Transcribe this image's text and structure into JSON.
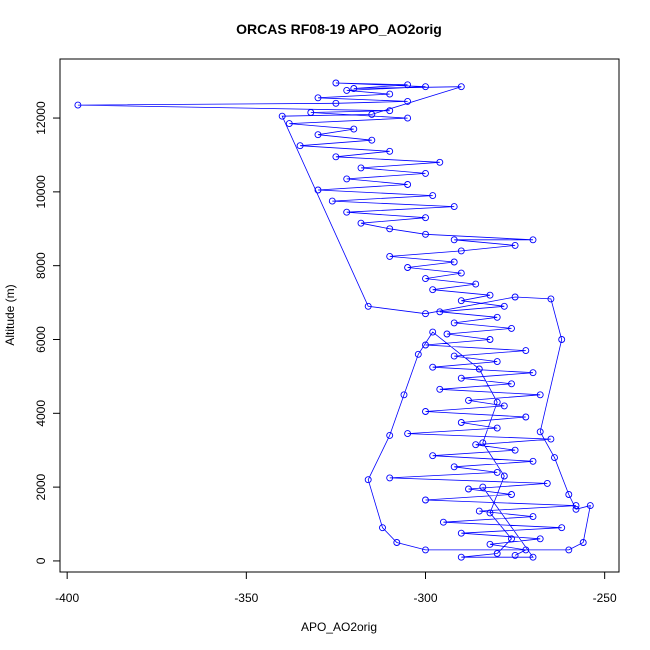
{
  "chart_data": {
    "type": "scatter",
    "title": "ORCAS RF08-19 APO_AO2orig",
    "xlabel": "APO_AO2orig",
    "ylabel": "Altitude (m)",
    "xlim": [
      -402,
      -246
    ],
    "ylim": [
      -300,
      13600
    ],
    "x_ticks": [
      -400,
      -350,
      -300,
      -250
    ],
    "y_ticks": [
      0,
      2000,
      4000,
      6000,
      8000,
      10000,
      12000
    ],
    "marker": "open-circle",
    "connected": true,
    "colors": {
      "series": "#0000ff",
      "axis": "#000000",
      "background": "#ffffff"
    },
    "grid": false,
    "legend": "none",
    "series": [
      {
        "values": [
          [
            -275,
            150
          ],
          [
            -272,
            300
          ],
          [
            -282,
            450
          ],
          [
            -268,
            600
          ],
          [
            -290,
            750
          ],
          [
            -262,
            900
          ],
          [
            -295,
            1050
          ],
          [
            -270,
            1200
          ],
          [
            -285,
            1350
          ],
          [
            -258,
            1500
          ],
          [
            -300,
            1650
          ],
          [
            -276,
            1800
          ],
          [
            -288,
            1950
          ],
          [
            -266,
            2100
          ],
          [
            -310,
            2250
          ],
          [
            -280,
            2400
          ],
          [
            -292,
            2550
          ],
          [
            -270,
            2700
          ],
          [
            -298,
            2850
          ],
          [
            -275,
            3000
          ],
          [
            -286,
            3150
          ],
          [
            -265,
            3300
          ],
          [
            -305,
            3450
          ],
          [
            -280,
            3600
          ],
          [
            -290,
            3750
          ],
          [
            -272,
            3900
          ],
          [
            -300,
            4050
          ],
          [
            -278,
            4200
          ],
          [
            -288,
            4350
          ],
          [
            -268,
            4500
          ],
          [
            -296,
            4650
          ],
          [
            -276,
            4800
          ],
          [
            -290,
            4950
          ],
          [
            -270,
            5100
          ],
          [
            -298,
            5250
          ],
          [
            -280,
            5400
          ],
          [
            -292,
            5550
          ],
          [
            -272,
            5700
          ],
          [
            -300,
            5850
          ],
          [
            -282,
            6000
          ],
          [
            -294,
            6150
          ],
          [
            -276,
            6300
          ],
          [
            -292,
            6450
          ],
          [
            -280,
            6600
          ],
          [
            -296,
            6750
          ],
          [
            -278,
            6900
          ],
          [
            -290,
            7050
          ],
          [
            -282,
            7200
          ],
          [
            -298,
            7350
          ],
          [
            -286,
            7500
          ],
          [
            -300,
            7650
          ],
          [
            -290,
            7800
          ],
          [
            -305,
            7950
          ],
          [
            -292,
            8100
          ],
          [
            -310,
            8250
          ],
          [
            -290,
            8400
          ],
          [
            -275,
            8550
          ],
          [
            -292,
            8700
          ],
          [
            -270,
            8700
          ],
          [
            -300,
            8850
          ],
          [
            -310,
            9000
          ],
          [
            -318,
            9150
          ],
          [
            -300,
            9300
          ],
          [
            -322,
            9450
          ],
          [
            -292,
            9600
          ],
          [
            -326,
            9750
          ],
          [
            -298,
            9900
          ],
          [
            -330,
            10050
          ],
          [
            -305,
            10200
          ],
          [
            -322,
            10350
          ],
          [
            -300,
            10500
          ],
          [
            -318,
            10650
          ],
          [
            -296,
            10800
          ],
          [
            -325,
            10950
          ],
          [
            -310,
            11100
          ],
          [
            -335,
            11250
          ],
          [
            -315,
            11400
          ],
          [
            -330,
            11550
          ],
          [
            -320,
            11700
          ],
          [
            -338,
            11850
          ],
          [
            -305,
            12000
          ],
          [
            -332,
            12150
          ],
          [
            -310,
            12200
          ],
          [
            -397,
            12350
          ],
          [
            -325,
            12400
          ],
          [
            -305,
            12450
          ],
          [
            -330,
            12550
          ],
          [
            -310,
            12650
          ],
          [
            -322,
            12750
          ],
          [
            -300,
            12850
          ],
          [
            -325,
            12950
          ],
          [
            -305,
            12900
          ],
          [
            -320,
            12800
          ],
          [
            -290,
            12850
          ],
          [
            -315,
            12100
          ],
          [
            -340,
            12050
          ],
          [
            -316,
            6900
          ],
          [
            -300,
            6700
          ],
          [
            -275,
            7150
          ],
          [
            -265,
            7100
          ],
          [
            -262,
            6000
          ],
          [
            -268,
            3500
          ],
          [
            -264,
            2800
          ],
          [
            -260,
            1800
          ],
          [
            -258,
            1400
          ],
          [
            -254,
            1500
          ],
          [
            -256,
            500
          ],
          [
            -260,
            300
          ],
          [
            -300,
            300
          ],
          [
            -308,
            500
          ],
          [
            -312,
            900
          ],
          [
            -316,
            2200
          ],
          [
            -310,
            3400
          ],
          [
            -306,
            4500
          ],
          [
            -302,
            5600
          ],
          [
            -298,
            6200
          ],
          [
            -285,
            5200
          ],
          [
            -280,
            4300
          ],
          [
            -284,
            3200
          ],
          [
            -278,
            2300
          ],
          [
            -282,
            1300
          ],
          [
            -276,
            600
          ],
          [
            -280,
            200
          ],
          [
            -290,
            100
          ],
          [
            -270,
            100
          ],
          [
            -284,
            2000
          ]
        ]
      }
    ]
  }
}
